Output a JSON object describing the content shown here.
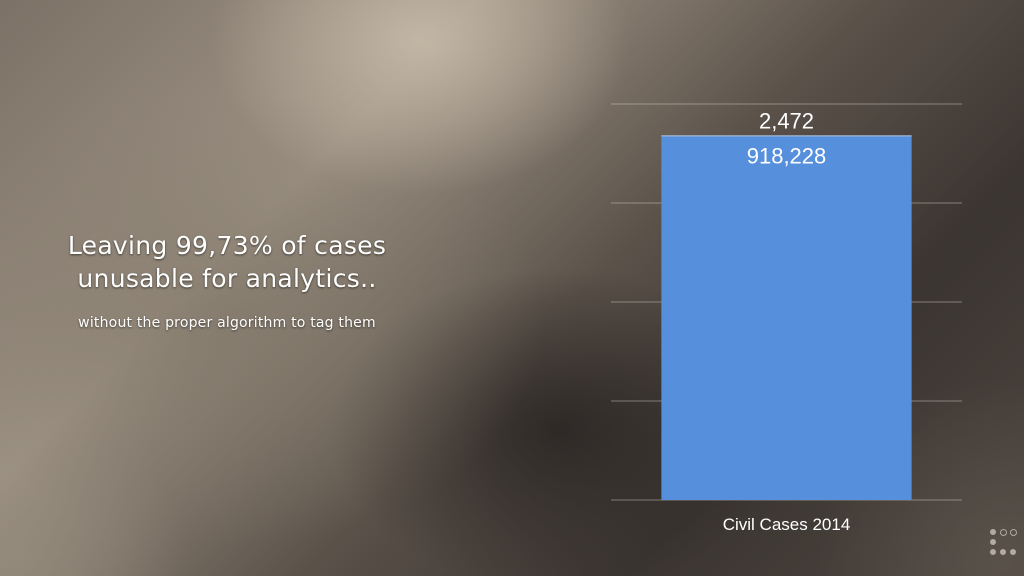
{
  "slide": {
    "headline": "Leaving 99,73% of cases unusable for analytics..",
    "subline": "without the proper algorithm to tag them",
    "nav_icon": "grid-dots-icon"
  },
  "chart_data": {
    "type": "bar",
    "stacked": true,
    "categories": [
      "Civil Cases 2014"
    ],
    "series": [
      {
        "values": [
          918228
        ],
        "color": "#568fdb",
        "label": "918,228"
      },
      {
        "values": [
          2472
        ],
        "color": "#568fdb",
        "label": "2,472"
      }
    ],
    "ylim": [
      0,
      1000000
    ],
    "gridlines": [
      0,
      250000,
      500000,
      750000,
      1000000
    ],
    "grid": true,
    "title": "",
    "xlabel": "",
    "ylabel": ""
  }
}
